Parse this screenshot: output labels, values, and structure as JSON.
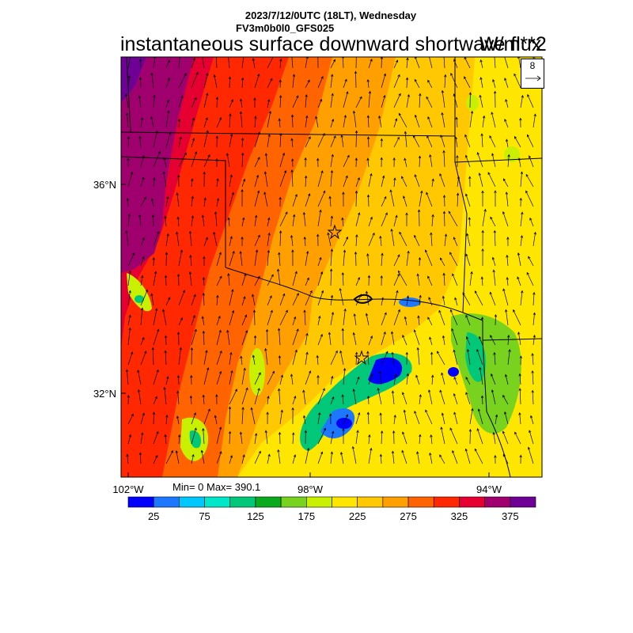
{
  "header": {
    "date_line": "2023/7/12/0UTC (18LT), Wednesday",
    "model_line": "FV3m0b0l0_GFS025",
    "title": "instantaneous surface downward shortwave flux",
    "units": "W/m**2"
  },
  "stats": {
    "text": "Min= 0 Max= 390.1"
  },
  "vector_reference": {
    "value": "8"
  },
  "axes": {
    "lat_labels": [
      "36°N",
      "32°N"
    ],
    "lon_labels": [
      "102°W",
      "98°W",
      "94°W"
    ]
  },
  "colorbar": {
    "colors": [
      "#0000ff",
      "#1e78ff",
      "#00c8ff",
      "#00e6c8",
      "#00c878",
      "#0aaa1e",
      "#78d21e",
      "#c8f000",
      "#ffe600",
      "#ffc800",
      "#ffa000",
      "#ff6400",
      "#ff2800",
      "#e60032",
      "#a0006e",
      "#6e0096"
    ],
    "labels": [
      "25",
      "75",
      "125",
      "175",
      "225",
      "275",
      "325",
      "375"
    ]
  },
  "map": {
    "region": "Oklahoma / Texas",
    "field_colors": {
      "purple": "#6e0096",
      "magenta": "#a0006e",
      "crimson": "#e60032",
      "red": "#ff2800",
      "redorange": "#ff6400",
      "orange": "#ffa000",
      "amber": "#ffc800",
      "yellow": "#ffe600"
    }
  }
}
